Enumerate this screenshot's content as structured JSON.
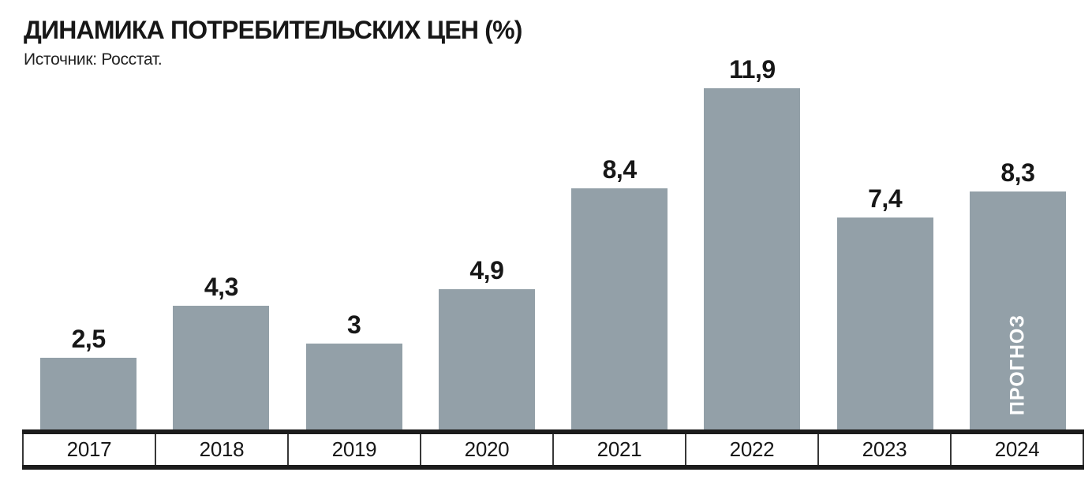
{
  "header": {
    "title": "ДИНАМИКА ПОТРЕБИТЕЛЬСКИХ ЦЕН (%)",
    "source": "Источник: Росстат."
  },
  "colors": {
    "bar": "#93a0a8",
    "text": "#171717",
    "axis_line": "#1c1c1c",
    "forecast_label": "#ffffff"
  },
  "chart_data": {
    "type": "bar",
    "title": "ДИНАМИКА ПОТРЕБИТЕЛЬСКИХ ЦЕН (%)",
    "subtitle": "Источник: Росстат.",
    "categories": [
      "2017",
      "2018",
      "2019",
      "2020",
      "2021",
      "2022",
      "2023",
      "2024"
    ],
    "values": [
      2.5,
      4.3,
      3,
      4.9,
      8.4,
      11.9,
      7.4,
      8.3
    ],
    "value_labels": [
      "2,5",
      "4,3",
      "3",
      "4,9",
      "8,4",
      "11,9",
      "7,4",
      "8,3"
    ],
    "xlabel": "",
    "ylabel": "",
    "ylim": [
      0,
      12.5
    ],
    "grid": false,
    "legend": "none",
    "annotations": [
      {
        "category": "2024",
        "text": "ПРОГНОЗ",
        "orientation": "vertical-bottom-to-top",
        "color": "#ffffff"
      }
    ]
  }
}
